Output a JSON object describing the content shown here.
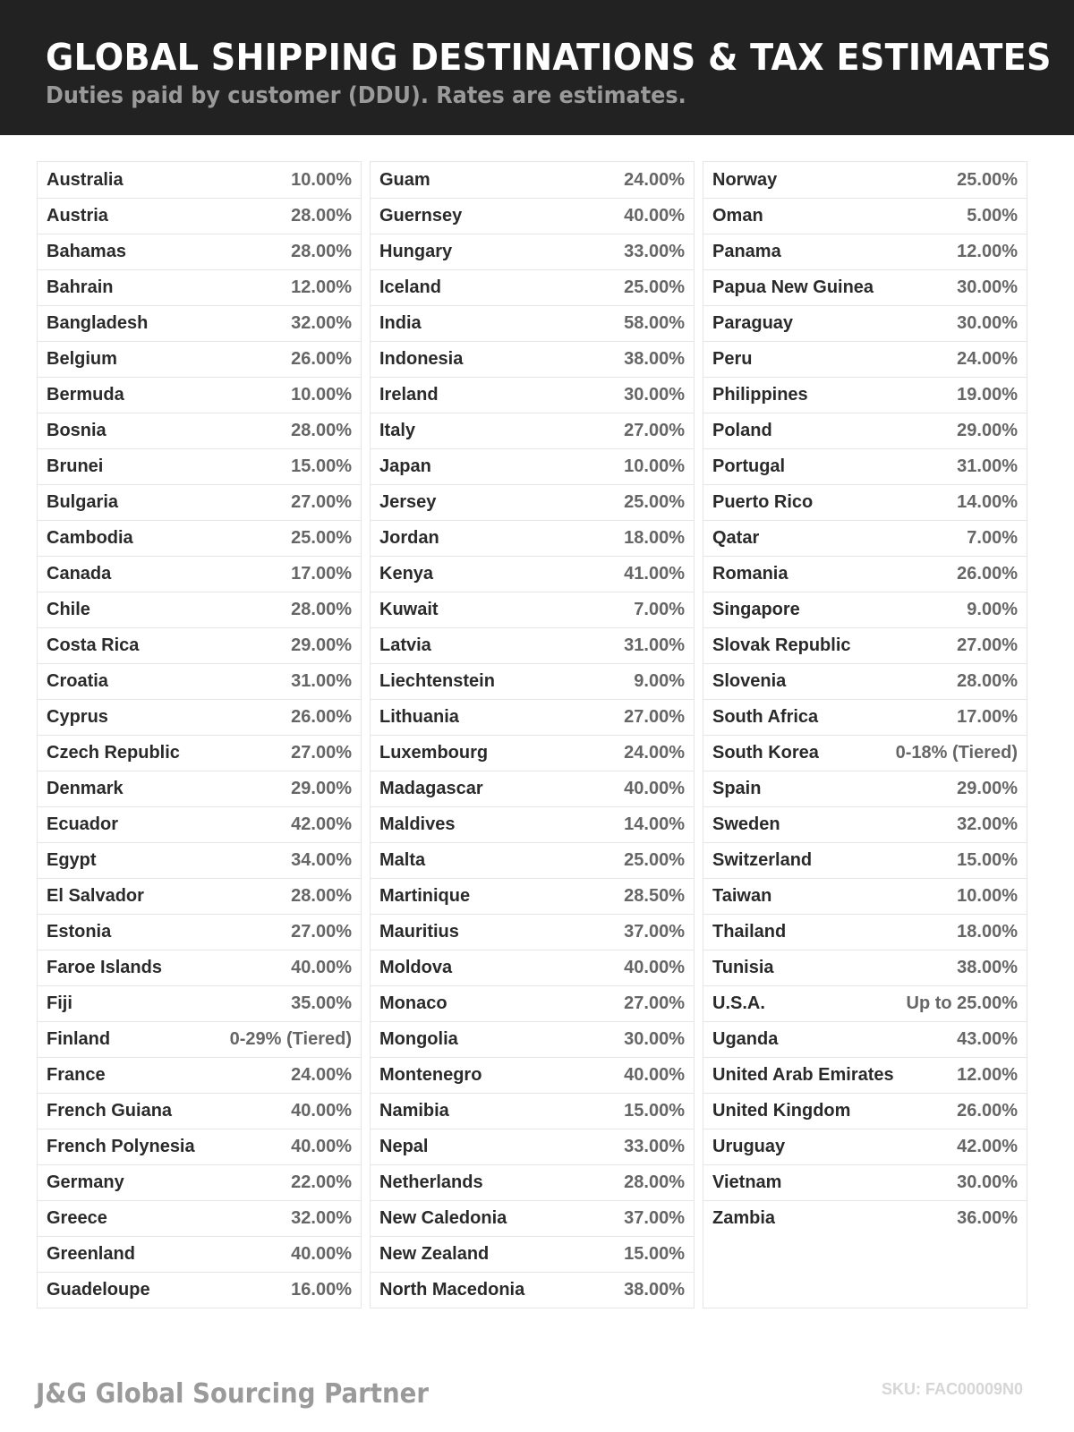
{
  "header": {
    "title": "GLOBAL SHIPPING DESTINATIONS & TAX ESTIMATES",
    "subtitle": "Duties paid by customer (DDU). Rates are estimates."
  },
  "columns": [
    [
      [
        "Australia",
        "10.00%"
      ],
      [
        "Austria",
        "28.00%"
      ],
      [
        "Bahamas",
        "28.00%"
      ],
      [
        "Bahrain",
        "12.00%"
      ],
      [
        "Bangladesh",
        "32.00%"
      ],
      [
        "Belgium",
        "26.00%"
      ],
      [
        "Bermuda",
        "10.00%"
      ],
      [
        "Bosnia",
        "28.00%"
      ],
      [
        "Brunei",
        "15.00%"
      ],
      [
        "Bulgaria",
        "27.00%"
      ],
      [
        "Cambodia",
        "25.00%"
      ],
      [
        "Canada",
        "17.00%"
      ],
      [
        "Chile",
        "28.00%"
      ],
      [
        "Costa Rica",
        "29.00%"
      ],
      [
        "Croatia",
        "31.00%"
      ],
      [
        "Cyprus",
        "26.00%"
      ],
      [
        "Czech Republic",
        "27.00%"
      ],
      [
        "Denmark",
        "29.00%"
      ],
      [
        "Ecuador",
        "42.00%"
      ],
      [
        "Egypt",
        "34.00%"
      ],
      [
        "El Salvador",
        "28.00%"
      ],
      [
        "Estonia",
        "27.00%"
      ],
      [
        "Faroe Islands",
        "40.00%"
      ],
      [
        "Fiji",
        "35.00%"
      ],
      [
        "Finland",
        "0-29% (Tiered)"
      ],
      [
        "France",
        "24.00%"
      ],
      [
        "French Guiana",
        "40.00%"
      ],
      [
        "French Polynesia",
        "40.00%"
      ],
      [
        "Germany",
        "22.00%"
      ],
      [
        "Greece",
        "32.00%"
      ],
      [
        "Greenland",
        "40.00%"
      ],
      [
        "Guadeloupe",
        "16.00%"
      ]
    ],
    [
      [
        "Guam",
        "24.00%"
      ],
      [
        "Guernsey",
        "40.00%"
      ],
      [
        "Hungary",
        "33.00%"
      ],
      [
        "Iceland",
        "25.00%"
      ],
      [
        "India",
        "58.00%"
      ],
      [
        "Indonesia",
        "38.00%"
      ],
      [
        "Ireland",
        "30.00%"
      ],
      [
        "Italy",
        "27.00%"
      ],
      [
        "Japan",
        "10.00%"
      ],
      [
        "Jersey",
        "25.00%"
      ],
      [
        "Jordan",
        "18.00%"
      ],
      [
        "Kenya",
        "41.00%"
      ],
      [
        "Kuwait",
        "7.00%"
      ],
      [
        "Latvia",
        "31.00%"
      ],
      [
        "Liechtenstein",
        "9.00%"
      ],
      [
        "Lithuania",
        "27.00%"
      ],
      [
        "Luxembourg",
        "24.00%"
      ],
      [
        "Madagascar",
        "40.00%"
      ],
      [
        "Maldives",
        "14.00%"
      ],
      [
        "Malta",
        "25.00%"
      ],
      [
        "Martinique",
        "28.50%"
      ],
      [
        "Mauritius",
        "37.00%"
      ],
      [
        "Moldova",
        "40.00%"
      ],
      [
        "Monaco",
        "27.00%"
      ],
      [
        "Mongolia",
        "30.00%"
      ],
      [
        "Montenegro",
        "40.00%"
      ],
      [
        "Namibia",
        "15.00%"
      ],
      [
        "Nepal",
        "33.00%"
      ],
      [
        "Netherlands",
        "28.00%"
      ],
      [
        "New Caledonia",
        "37.00%"
      ],
      [
        "New Zealand",
        "15.00%"
      ],
      [
        "North Macedonia",
        "38.00%"
      ]
    ],
    [
      [
        "Norway",
        "25.00%"
      ],
      [
        "Oman",
        "5.00%"
      ],
      [
        "Panama",
        "12.00%"
      ],
      [
        "Papua New Guinea",
        "30.00%"
      ],
      [
        "Paraguay",
        "30.00%"
      ],
      [
        "Peru",
        "24.00%"
      ],
      [
        "Philippines",
        "19.00%"
      ],
      [
        "Poland",
        "29.00%"
      ],
      [
        "Portugal",
        "31.00%"
      ],
      [
        "Puerto Rico",
        "14.00%"
      ],
      [
        "Qatar",
        "7.00%"
      ],
      [
        "Romania",
        "26.00%"
      ],
      [
        "Singapore",
        "9.00%"
      ],
      [
        "Slovak Republic",
        "27.00%"
      ],
      [
        "Slovenia",
        "28.00%"
      ],
      [
        "South Africa",
        "17.00%"
      ],
      [
        "South Korea",
        "0-18% (Tiered)"
      ],
      [
        "Spain",
        "29.00%"
      ],
      [
        "Sweden",
        "32.00%"
      ],
      [
        "Switzerland",
        "15.00%"
      ],
      [
        "Taiwan",
        "10.00%"
      ],
      [
        "Thailand",
        "18.00%"
      ],
      [
        "Tunisia",
        "38.00%"
      ],
      [
        "U.S.A.",
        "Up to 25.00%"
      ],
      [
        "Uganda",
        "43.00%"
      ],
      [
        "United Arab Emirates",
        "12.00%"
      ],
      [
        "United Kingdom",
        "26.00%"
      ],
      [
        "Uruguay",
        "42.00%"
      ],
      [
        "Vietnam",
        "30.00%"
      ],
      [
        "Zambia",
        "36.00%"
      ]
    ]
  ],
  "footer": {
    "brand": "J&G Global Sourcing Partner",
    "sku": "SKU: FAC00009N0"
  }
}
